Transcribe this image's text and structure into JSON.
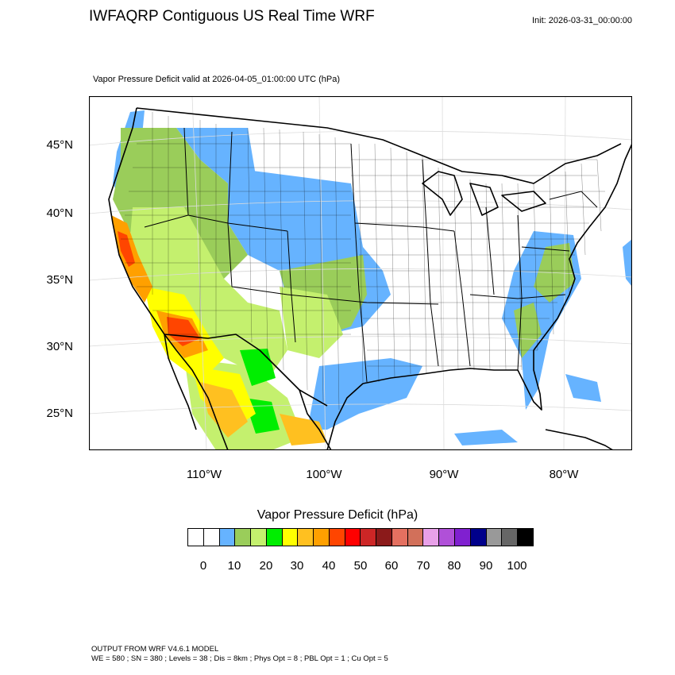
{
  "header": {
    "title": "IWFAQRP Contiguous US Real Time WRF",
    "init": "Init: 2026-03-31_00:00:00",
    "subtitle": "Vapor Pressure Deficit valid at 2026-04-05_01:00:00 UTC   (hPa)"
  },
  "map": {
    "lat_labels": [
      "45°N",
      "40°N",
      "35°N",
      "30°N",
      "25°N"
    ],
    "lon_labels": [
      "110°W",
      "100°W",
      "90°W",
      "80°W"
    ],
    "background_color": "#ffffff",
    "land_color": "#ffffff",
    "water_shade_color": "#66b3ff"
  },
  "legend": {
    "title": "Vapor Pressure Deficit  (hPa)",
    "colors": [
      "#ffffff",
      "#ffffff",
      "#66b3ff",
      "#9acd5a",
      "#c4f06e",
      "#00ee00",
      "#ffff00",
      "#ffc020",
      "#ffa000",
      "#ff4500",
      "#ff0000",
      "#cd2626",
      "#8b1a1a",
      "#e47060",
      "#d2705a",
      "#e8a0e8",
      "#b050d8",
      "#8020d0",
      "#00008b",
      "#999999",
      "#666666",
      "#000000"
    ],
    "tick_labels": [
      "0",
      "10",
      "20",
      "30",
      "40",
      "50",
      "60",
      "70",
      "80",
      "90",
      "100"
    ]
  },
  "footer": {
    "line1": "OUTPUT FROM WRF V4.6.1 MODEL",
    "line2": "WE = 580 ; SN = 380 ; Levels = 38 ; Dis = 8km ; Phys Opt = 8 ; PBL Opt = 1 ; Cu Opt = 5"
  }
}
